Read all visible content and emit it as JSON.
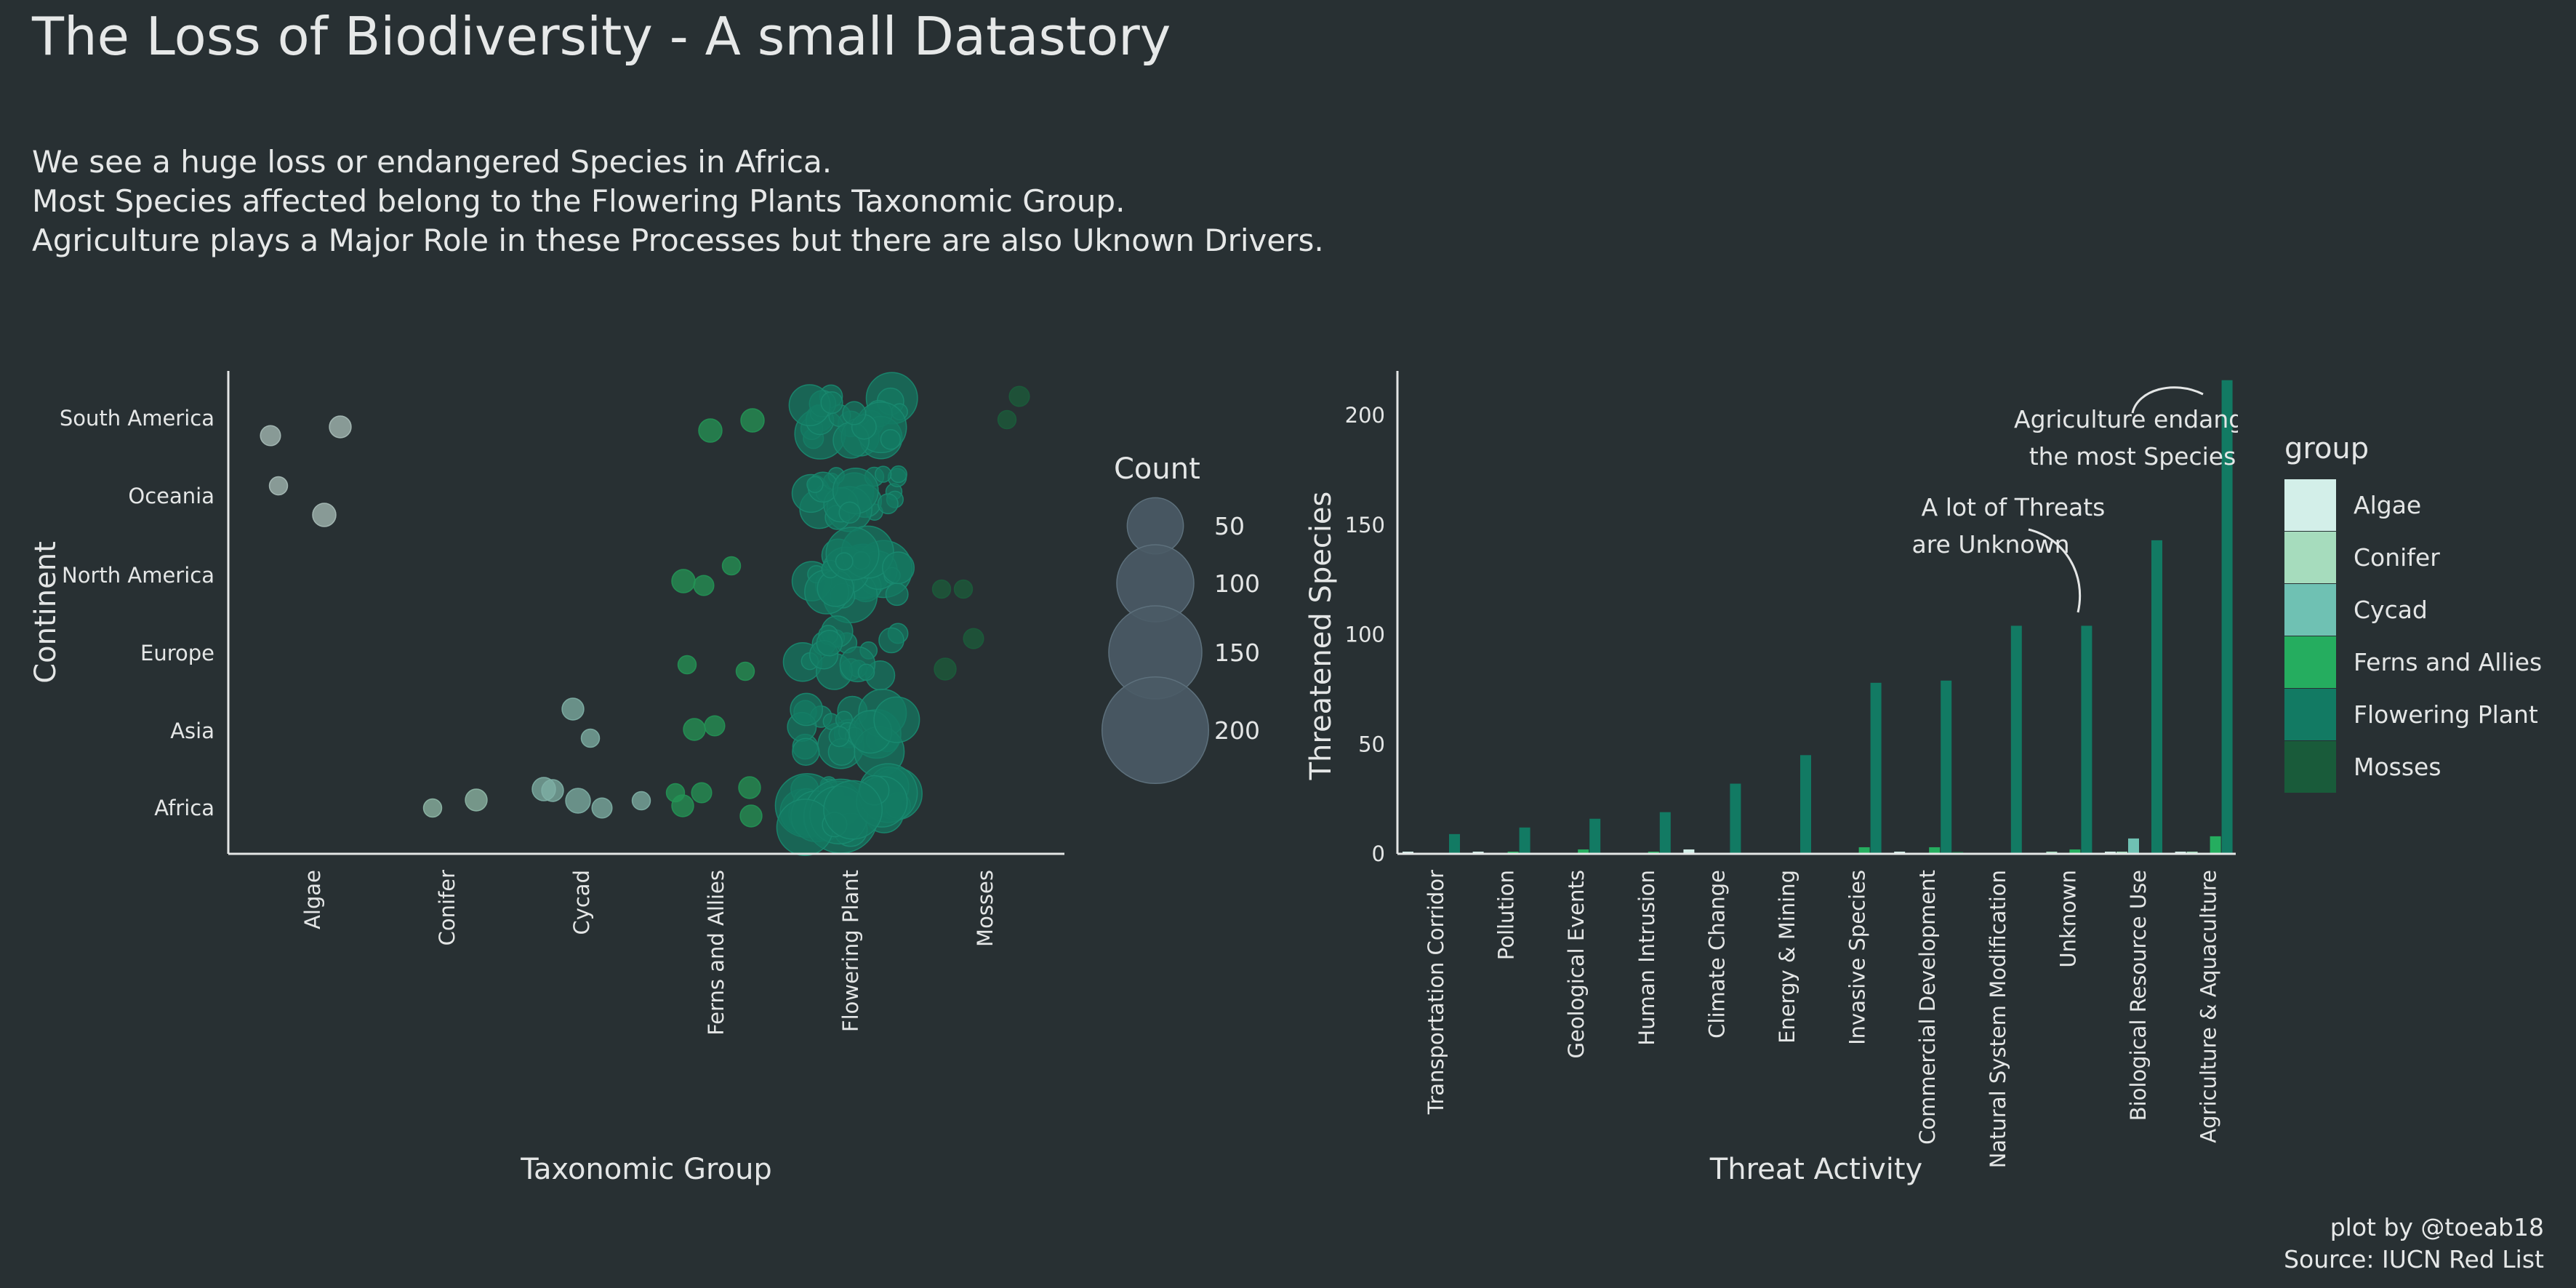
{
  "header": {
    "title": "The Loss of Biodiversity - A small Datastory",
    "subtitle_lines": [
      "We see a huge loss or endangered Species in Africa.",
      "Most Species affected belong to the Flowering Plants Taxonomic Group.",
      "Agriculture plays a Major Role in these Processes but there are also Uknown Drivers."
    ]
  },
  "caption": {
    "line1": "plot by @toeab18",
    "line2": "Source: IUCN Red List"
  },
  "colors": {
    "background": "#283033",
    "text": "#e4e6e6",
    "axis": "#e4e6e6",
    "size_legend_fill": "#4a5b66"
  },
  "chart_data": [
    {
      "type": "scatter",
      "subtype": "jittered bubble",
      "xlabel": "Taxonomic Group",
      "ylabel": "Continent",
      "categories_x": [
        "Algae",
        "Conifer",
        "Cycad",
        "Ferns and Allies",
        "Flowering Plant",
        "Mosses"
      ],
      "categories_y": [
        "Africa",
        "Asia",
        "Europe",
        "North America",
        "Oceania",
        "South America"
      ],
      "size_legend": {
        "title": "Count",
        "breaks": [
          50,
          100,
          150,
          200
        ],
        "labels": [
          "50",
          "100",
          "150",
          "200"
        ]
      },
      "points": [
        {
          "group": "Algae",
          "continent": "South America",
          "count": 4,
          "color": "#a8bdb8"
        },
        {
          "group": "Algae",
          "continent": "South America",
          "count": 5,
          "color": "#a8bdb8"
        },
        {
          "group": "Algae",
          "continent": "Oceania",
          "count": 3,
          "color": "#a8bdb8"
        },
        {
          "group": "Algae",
          "continent": "Oceania",
          "count": 6,
          "color": "#a8bdb8"
        },
        {
          "group": "Conifer",
          "continent": "Africa",
          "count": 3,
          "color": "#8fb8a7"
        },
        {
          "group": "Conifer",
          "continent": "Africa",
          "count": 5,
          "color": "#8fb8a7"
        },
        {
          "group": "Cycad",
          "continent": "Asia",
          "count": 5,
          "color": "#7fb0a6"
        },
        {
          "group": "Cycad",
          "continent": "Asia",
          "count": 3,
          "color": "#7fb0a6"
        },
        {
          "group": "Cycad",
          "continent": "Africa",
          "count": 6,
          "color": "#7fb0a6"
        },
        {
          "group": "Cycad",
          "continent": "Africa",
          "count": 3,
          "color": "#7fb0a6"
        },
        {
          "group": "Cycad",
          "continent": "Africa",
          "count": 7,
          "color": "#7fb0a6"
        },
        {
          "group": "Cycad",
          "continent": "Africa",
          "count": 4,
          "color": "#7fb0a6"
        },
        {
          "group": "Cycad",
          "continent": "Africa",
          "count": 5,
          "color": "#7fb0a6"
        },
        {
          "group": "Ferns and Allies",
          "continent": "South America",
          "count": 6,
          "color": "#249455"
        },
        {
          "group": "Ferns and Allies",
          "continent": "South America",
          "count": 6,
          "color": "#249455"
        },
        {
          "group": "Ferns and Allies",
          "continent": "North America",
          "count": 6,
          "color": "#249455"
        },
        {
          "group": "Ferns and Allies",
          "continent": "North America",
          "count": 4,
          "color": "#249455"
        },
        {
          "group": "Ferns and Allies",
          "continent": "North America",
          "count": 3,
          "color": "#249455"
        },
        {
          "group": "Ferns and Allies",
          "continent": "Europe",
          "count": 3,
          "color": "#249455"
        },
        {
          "group": "Ferns and Allies",
          "continent": "Europe",
          "count": 3,
          "color": "#249455"
        },
        {
          "group": "Ferns and Allies",
          "continent": "Asia",
          "count": 5,
          "color": "#249455"
        },
        {
          "group": "Ferns and Allies",
          "continent": "Asia",
          "count": 4,
          "color": "#249455"
        },
        {
          "group": "Ferns and Allies",
          "continent": "Africa",
          "count": 3,
          "color": "#249455"
        },
        {
          "group": "Ferns and Allies",
          "continent": "Africa",
          "count": 4,
          "color": "#249455"
        },
        {
          "group": "Ferns and Allies",
          "continent": "Africa",
          "count": 5,
          "color": "#249455"
        },
        {
          "group": "Ferns and Allies",
          "continent": "Africa",
          "count": 5,
          "color": "#249455"
        },
        {
          "group": "Ferns and Allies",
          "continent": "Africa",
          "count": 5,
          "color": "#249455"
        },
        {
          "group": "Mosses",
          "continent": "South America",
          "count": 3,
          "color": "#1b5c3b"
        },
        {
          "group": "Mosses",
          "continent": "South America",
          "count": 4,
          "color": "#1b5c3b"
        },
        {
          "group": "Mosses",
          "continent": "North America",
          "count": 3,
          "color": "#1b5c3b"
        },
        {
          "group": "Mosses",
          "continent": "North America",
          "count": 3,
          "color": "#1b5c3b"
        },
        {
          "group": "Mosses",
          "continent": "Europe",
          "count": 5,
          "color": "#1b5c3b"
        },
        {
          "group": "Mosses",
          "continent": "Europe",
          "count": 4,
          "color": "#1b5c3b"
        }
      ],
      "flowering_plant_clusters": [
        {
          "continent": "South America",
          "n_points": 24,
          "max_count": 50,
          "color": "#137a63"
        },
        {
          "continent": "Oceania",
          "n_points": 22,
          "max_count": 30,
          "color": "#137a63"
        },
        {
          "continent": "North America",
          "n_points": 22,
          "max_count": 60,
          "color": "#137a63"
        },
        {
          "continent": "Europe",
          "n_points": 18,
          "max_count": 20,
          "color": "#137a63"
        },
        {
          "continent": "Asia",
          "n_points": 22,
          "max_count": 40,
          "color": "#137a63"
        },
        {
          "continent": "Africa",
          "n_points": 30,
          "max_count": 100,
          "color": "#137a63"
        }
      ]
    },
    {
      "type": "bar",
      "subtype": "dodged",
      "xlabel": "Threat Activity",
      "ylabel": "Threatened Species",
      "ylim": [
        0,
        220
      ],
      "yticks": [
        0,
        50,
        100,
        150,
        200
      ],
      "categories": [
        "Transportation Corridor",
        "Pollution",
        "Geological Events",
        "Human Intrusion",
        "Climate Change",
        "Energy & Mining",
        "Invasive Species",
        "Commercial Development",
        "Natural System Modification",
        "Unknown",
        "Biological Resource Use",
        "Agriculture & Aquaculture"
      ],
      "legend": {
        "title": "group",
        "position": "right"
      },
      "series": [
        {
          "name": "Algae",
          "color": "#d3efe9",
          "values": [
            1,
            1,
            0,
            0,
            2,
            0,
            0,
            1,
            0,
            0,
            1,
            1
          ]
        },
        {
          "name": "Conifer",
          "color": "#a6dcbd",
          "values": [
            0,
            0,
            0,
            0,
            0,
            0,
            0,
            0,
            0,
            1,
            1,
            1
          ]
        },
        {
          "name": "Cycad",
          "color": "#6fc1b3",
          "values": [
            0,
            0,
            0,
            0,
            0,
            0,
            0,
            0,
            0,
            0,
            7,
            0
          ]
        },
        {
          "name": "Ferns and Allies",
          "color": "#25ad5f",
          "values": [
            0,
            1,
            2,
            1,
            0,
            0,
            3,
            3,
            0,
            2,
            0,
            8
          ]
        },
        {
          "name": "Flowering Plant",
          "color": "#127a63",
          "values": [
            9,
            12,
            16,
            19,
            32,
            45,
            78,
            79,
            104,
            104,
            143,
            216
          ]
        },
        {
          "name": "Mosses",
          "color": "#195b3a",
          "values": [
            0,
            0,
            0,
            0,
            0,
            0,
            0,
            1,
            0,
            0,
            0,
            0
          ]
        }
      ],
      "annotations": [
        {
          "lines": [
            "Agriculture endangers",
            "the most Species"
          ]
        },
        {
          "lines": [
            "A lot of Threats",
            "are Unknown"
          ]
        }
      ]
    }
  ]
}
